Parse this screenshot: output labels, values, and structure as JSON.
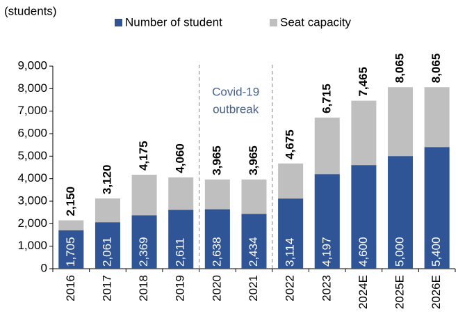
{
  "chart_data": {
    "type": "bar",
    "y_label": "(students)",
    "categories": [
      "2016",
      "2017",
      "2018",
      "2019",
      "2020",
      "2021",
      "2022",
      "2023",
      "2024E",
      "2025E",
      "2026E"
    ],
    "series": [
      {
        "name": "Number of student",
        "color": "#2f5597",
        "values": [
          1705,
          2061,
          2369,
          2611,
          2638,
          2434,
          3114,
          4197,
          4600,
          5000,
          5400
        ],
        "value_labels": [
          "1,705",
          "2,061",
          "2,369",
          "2,611",
          "2,638",
          "2,434",
          "3,114",
          "4,197",
          "4,600",
          "5,000",
          "5,400"
        ]
      },
      {
        "name": "Seat capacity",
        "color": "#bfbfbf",
        "values": [
          2150,
          3120,
          4175,
          4060,
          3965,
          3965,
          4675,
          6715,
          7465,
          8065,
          8065
        ],
        "value_labels": [
          "2,150",
          "3,120",
          "4,175",
          "4,060",
          "3,965",
          "3,965",
          "4,675",
          "6,715",
          "7,465",
          "8,065",
          "8,065"
        ]
      }
    ],
    "annotation": [
      "Covid-19",
      "outbreak"
    ],
    "annotation_color": "#44608f",
    "ylim": [
      0,
      9000
    ],
    "yticks": [
      0,
      {
        "value": 1000,
        "label": "1,000"
      },
      {
        "value": 2000,
        "label": "2,000"
      },
      {
        "value": 3000,
        "label": "3,000"
      },
      {
        "value": 4000,
        "label": "4,000"
      },
      {
        "value": 5000,
        "label": "5,000"
      },
      {
        "value": 6000,
        "label": "6,000"
      },
      {
        "value": 7000,
        "label": "7,000"
      },
      {
        "value": 8000,
        "label": "8,000"
      },
      {
        "value": 9000,
        "label": "9,000"
      }
    ],
    "grid": false,
    "legend": "top"
  }
}
